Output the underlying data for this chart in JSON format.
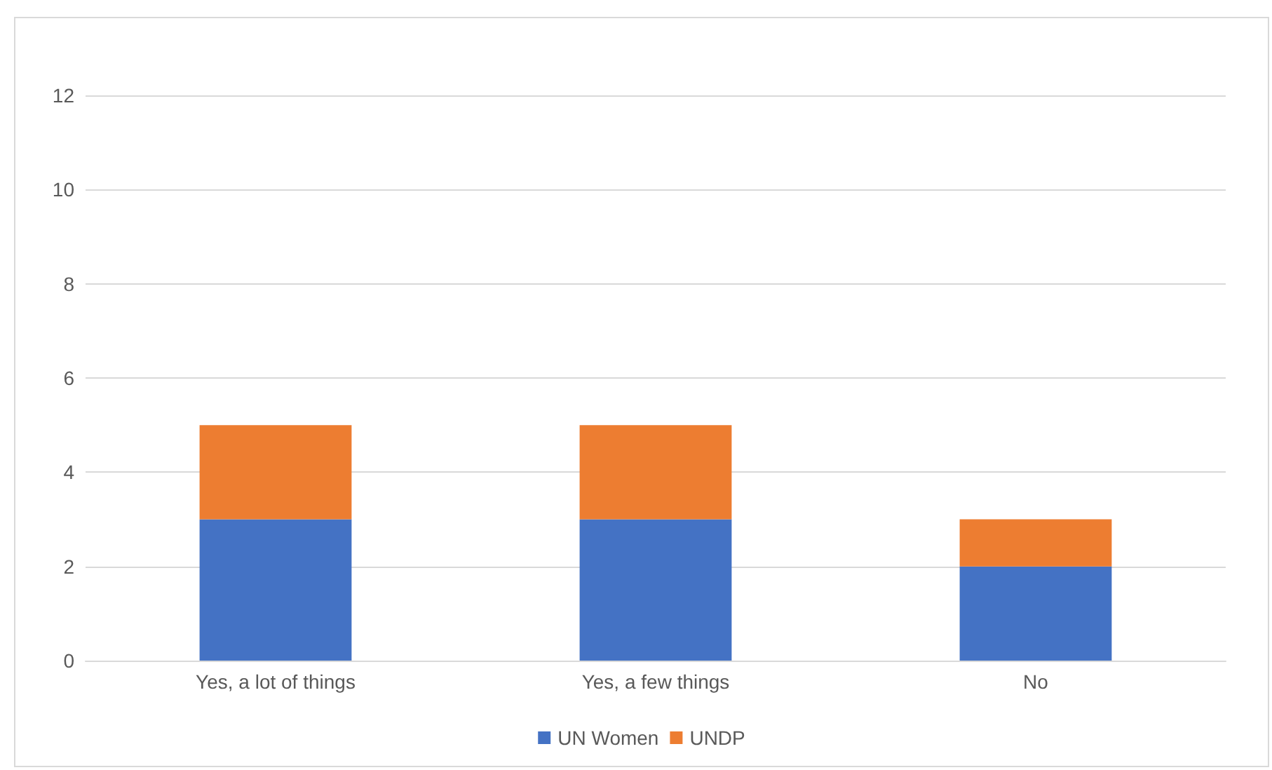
{
  "chart_data": {
    "type": "bar",
    "stacked": true,
    "categories": [
      "Yes, a lot of things",
      "Yes, a few things",
      "No"
    ],
    "series": [
      {
        "name": "UN Women",
        "color": "#4472c4",
        "values": [
          3,
          3,
          2
        ]
      },
      {
        "name": "UNDP",
        "color": "#ed7d31",
        "values": [
          2,
          2,
          1
        ]
      }
    ],
    "ylim": [
      0,
      12
    ],
    "yticks": [
      0,
      2,
      4,
      6,
      8,
      10,
      12
    ],
    "grid": "y",
    "legend": "bottom"
  }
}
